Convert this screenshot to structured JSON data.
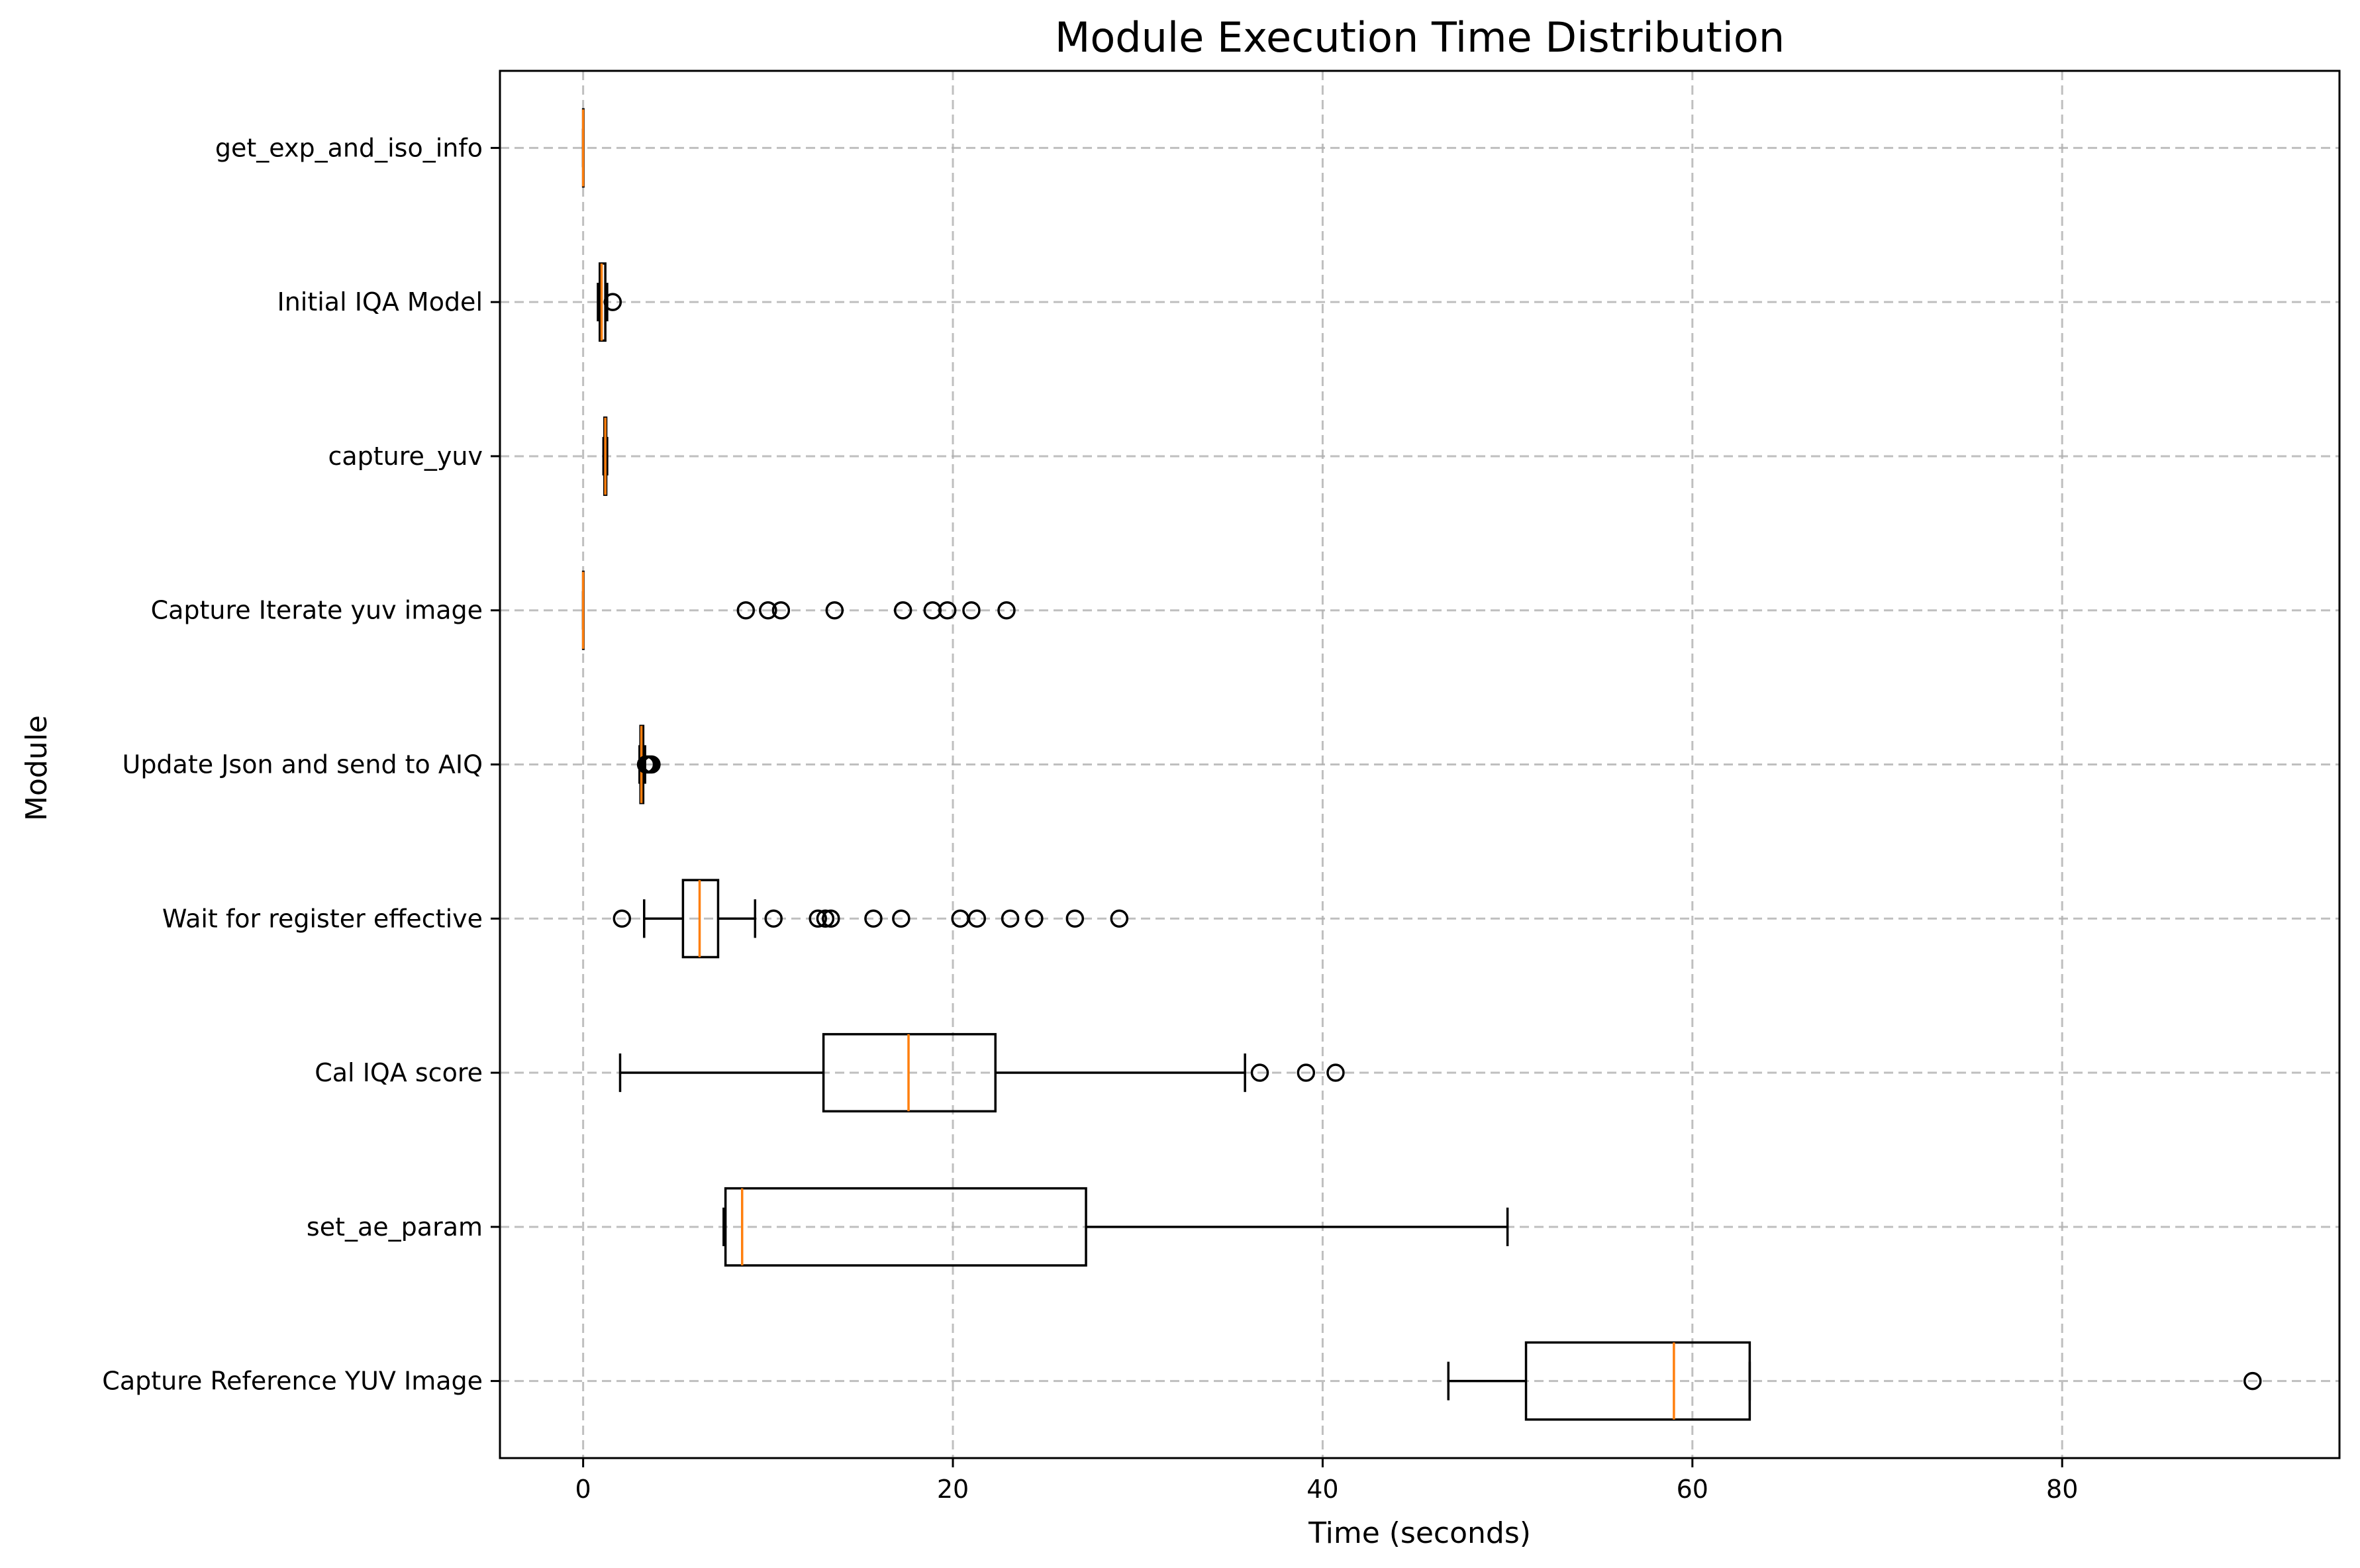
{
  "chart_data": {
    "type": "boxplot",
    "orientation": "horizontal",
    "title": "Module Execution Time Distribution",
    "xlabel": "Time (seconds)",
    "ylabel": "Module",
    "xlim": [
      -4.5,
      95
    ],
    "x_ticks": [
      0,
      20,
      40,
      60,
      80
    ],
    "x_tick_labels": [
      "0",
      "20",
      "40",
      "60",
      "80"
    ],
    "grid": true,
    "colors": {
      "box": "#000000",
      "median": "#ff7f0e",
      "grid": "#b0b0b0"
    },
    "series": [
      {
        "name": "get_exp_and_iso_info",
        "min": 0,
        "q1": 0,
        "median": 0,
        "q3": 0,
        "max": 0,
        "outliers": []
      },
      {
        "name": "Initial IQA Model",
        "min": 0.8,
        "q1": 0.9,
        "median": 1.0,
        "q3": 1.2,
        "max": 1.3,
        "outliers": [
          1.6
        ]
      },
      {
        "name": "capture_yuv",
        "min": 1.1,
        "q1": 1.15,
        "median": 1.2,
        "q3": 1.25,
        "max": 1.3,
        "outliers": []
      },
      {
        "name": "Capture Iterate yuv image",
        "min": 0,
        "q1": 0,
        "median": 0,
        "q3": 0,
        "max": 0,
        "outliers": [
          8.8,
          10.0,
          10.7,
          13.6,
          17.3,
          18.9,
          19.7,
          21.0,
          22.9
        ]
      },
      {
        "name": "Update Json and send to AIQ",
        "min": 3.05,
        "q1": 3.1,
        "median": 3.15,
        "q3": 3.25,
        "max": 3.35,
        "outliers": [
          3.4,
          3.5,
          3.6,
          3.7
        ]
      },
      {
        "name": "Wait for register effective",
        "min": 3.3,
        "q1": 5.4,
        "median": 6.3,
        "q3": 7.3,
        "max": 9.3,
        "outliers": [
          2.1,
          10.3,
          12.7,
          13.1,
          13.4,
          15.7,
          17.2,
          20.4,
          21.3,
          23.1,
          24.4,
          26.6,
          29.0
        ]
      },
      {
        "name": "Cal IQA score",
        "min": 2.0,
        "q1": 13.0,
        "median": 17.6,
        "q3": 22.3,
        "max": 35.8,
        "outliers": [
          36.6,
          39.1,
          40.7
        ]
      },
      {
        "name": "set_ae_param",
        "min": 7.6,
        "q1": 7.7,
        "median": 8.6,
        "q3": 27.2,
        "max": 50.0,
        "outliers": []
      },
      {
        "name": "Capture Reference YUV Image",
        "min": 46.8,
        "q1": 51.0,
        "median": 59.0,
        "q3": 63.1,
        "max": 63.1,
        "outliers": [
          90.3
        ]
      }
    ]
  }
}
